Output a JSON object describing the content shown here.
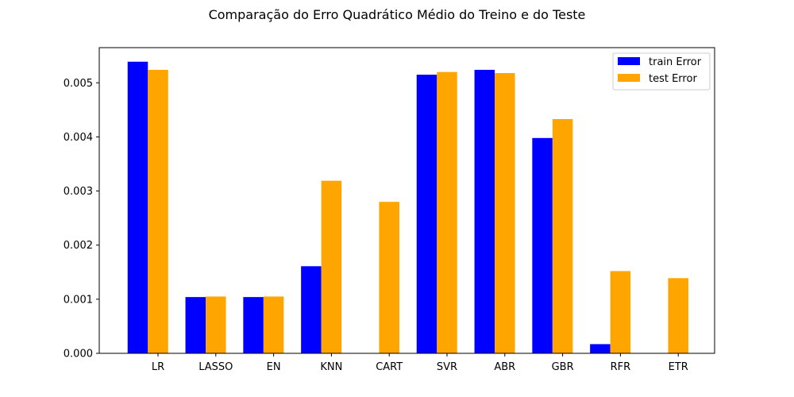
{
  "chart_data": {
    "type": "bar",
    "title": "Comparação do Erro Quadrático Médio do Treino e do Teste",
    "xlabel": "",
    "ylabel": "",
    "categories": [
      "LR",
      "LASSO",
      "EN",
      "KNN",
      "CART",
      "SVR",
      "ABR",
      "GBR",
      "RFR",
      "ETR"
    ],
    "series": [
      {
        "name": "train Error",
        "color": "#0000ff",
        "values": [
          0.00539,
          0.00104,
          0.00104,
          0.00161,
          0.0,
          0.00515,
          0.00524,
          0.00398,
          0.00017,
          0.0
        ]
      },
      {
        "name": "test Error",
        "color": "#ffa500",
        "values": [
          0.00524,
          0.00105,
          0.00105,
          0.00319,
          0.0028,
          0.0052,
          0.00518,
          0.00433,
          0.00152,
          0.00139
        ]
      }
    ],
    "ylim": [
      0,
      0.00565
    ],
    "yticks": [
      "0.000",
      "0.001",
      "0.002",
      "0.003",
      "0.004",
      "0.005"
    ],
    "legend_position": "top-right",
    "grid": false
  }
}
